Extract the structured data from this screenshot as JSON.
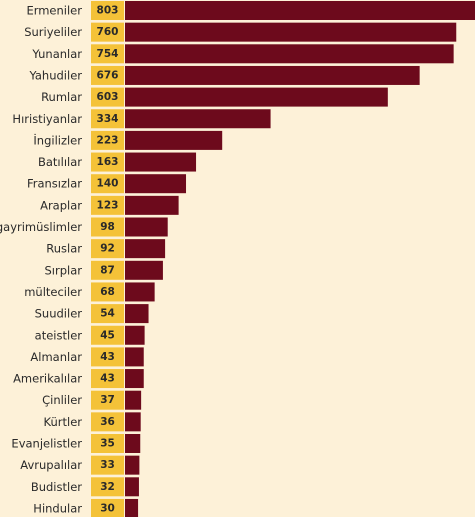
{
  "chart_data": {
    "type": "bar",
    "orientation": "horizontal",
    "categories": [
      "Ermeniler",
      "Suriyeliler",
      "Yunanlar",
      "Yahudiler",
      "Rumlar",
      "Hıristiyanlar",
      "İngilizler",
      "Batılılar",
      "Fransızlar",
      "Araplar",
      "gayrimüslimler",
      "Ruslar",
      "Sırplar",
      "mülteciler",
      "Suudiler",
      "ateistler",
      "Almanlar",
      "Amerikalılar",
      "Çinliler",
      "Kürtler",
      "Evanjelistler",
      "Avrupalılar",
      "Budistler",
      "Hindular"
    ],
    "values": [
      803,
      760,
      754,
      676,
      603,
      334,
      223,
      163,
      140,
      123,
      98,
      92,
      87,
      68,
      54,
      45,
      43,
      43,
      37,
      36,
      35,
      33,
      32,
      30
    ],
    "title": "",
    "xlabel": "",
    "ylabel": "",
    "xlim": [
      0,
      803
    ],
    "grid": false,
    "legend": "none",
    "colors": {
      "background": "#fdf1d8",
      "bar": "#6d0a1c",
      "value_box": "#f4c238",
      "label_text": "#2a2a2a"
    }
  }
}
